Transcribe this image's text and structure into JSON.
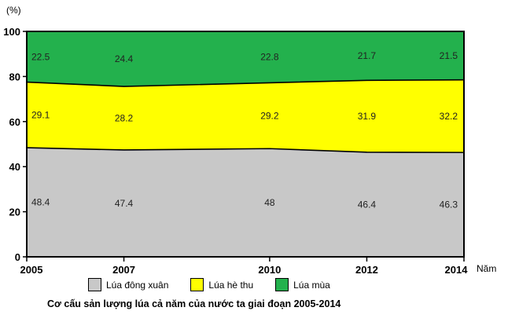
{
  "chart_data": {
    "type": "area",
    "x": [
      "2005",
      "2007",
      "2010",
      "2012",
      "2014"
    ],
    "x_numeric": [
      2005,
      2007,
      2010,
      2012,
      2014
    ],
    "series": [
      {
        "name": "Lúa đông xuân",
        "values": [
          48.4,
          47.4,
          48,
          46.4,
          46.3
        ],
        "labels": [
          "48.4",
          "47.4",
          "48",
          "46.4",
          "46.3"
        ],
        "color": "#c8c8c8"
      },
      {
        "name": "Lúa hè thu",
        "values": [
          29.1,
          28.2,
          29.2,
          31.9,
          32.2
        ],
        "labels": [
          "29.1",
          "28.2",
          "29.2",
          "31.9",
          "32.2"
        ],
        "color": "#ffff00"
      },
      {
        "name": "Lúa mùa",
        "values": [
          22.5,
          24.4,
          22.8,
          21.7,
          21.5
        ],
        "labels": [
          "22.5",
          "24.4",
          "22.8",
          "21.7",
          "21.5"
        ],
        "color": "#23b14d"
      }
    ],
    "stacked": true,
    "ylim": [
      0,
      100
    ],
    "yticks": [
      "0",
      "20",
      "40",
      "60",
      "80",
      "100"
    ],
    "ylabel": "(%)",
    "xlabel": "Năm",
    "title": "Cơ cấu sản lượng lúa cả năm của nước ta giai đoạn 2005-2014",
    "legend_position": "bottom",
    "grid": false
  },
  "legend": {
    "items": [
      {
        "label": "Lúa đông xuân",
        "color": "#c8c8c8"
      },
      {
        "label": "Lúa hè thu",
        "color": "#ffff00"
      },
      {
        "label": "Lúa mùa",
        "color": "#23b14d"
      }
    ]
  }
}
